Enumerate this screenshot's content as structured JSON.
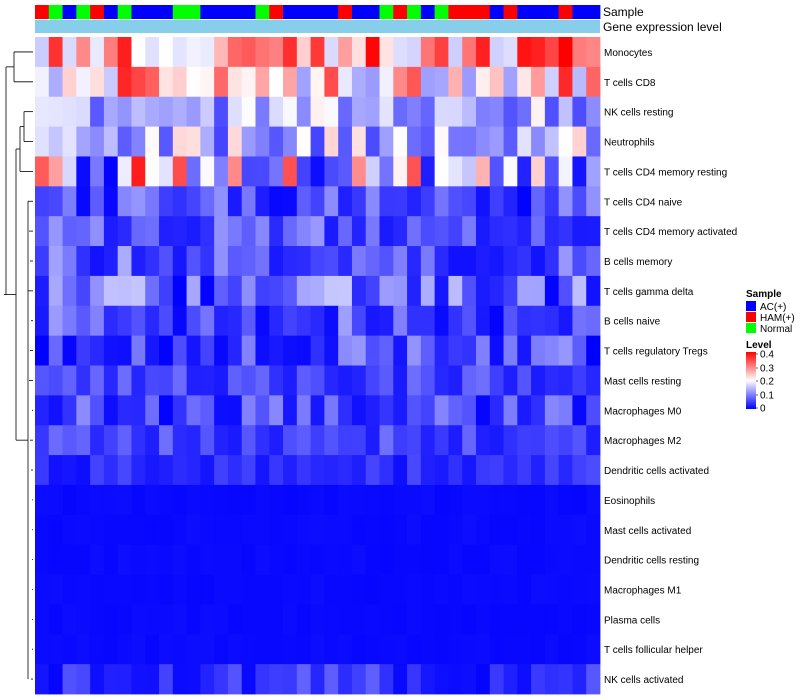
{
  "chart_data": {
    "type": "heatmap",
    "title": "",
    "annotations": [
      {
        "label": "Sample",
        "type": "categorical"
      },
      {
        "label": "Gene expression level",
        "type": "continuous",
        "color": "#87ceeb"
      }
    ],
    "columns": 41,
    "sample_groups": [
      "H",
      "N",
      "B",
      "N",
      "H",
      "B",
      "N",
      "B",
      "B",
      "B",
      "N",
      "N",
      "B",
      "B",
      "B",
      "B",
      "N",
      "H",
      "B",
      "B",
      "B",
      "B",
      "H",
      "B",
      "B",
      "N",
      "H",
      "N",
      "B",
      "N",
      "H",
      "H",
      "H",
      "B",
      "H",
      "B",
      "B",
      "B",
      "H",
      "B",
      "B"
    ],
    "rows": [
      "Monocytes",
      "T cells CD8",
      "NK cells resting",
      "Neutrophils",
      "T cells CD4 memory resting",
      "T cells CD4 naive",
      "T cells CD4 memory activated",
      "B cells memory",
      "T cells gamma delta",
      "B cells naive",
      "T cells regulatory  Tregs",
      "Mast cells resting",
      "Macrophages M0",
      "Macrophages M2",
      "Dendritic cells activated",
      "Eosinophils",
      "Mast cells activated",
      "Dendritic cells resting",
      "Macrophages M1",
      "Plasma cells",
      "T cells follicular helper",
      "NK cells activated"
    ],
    "row_ranges": [
      [
        0.16,
        0.42
      ],
      [
        0.12,
        0.42
      ],
      [
        0.06,
        0.22
      ],
      [
        0.05,
        0.24
      ],
      [
        0.0,
        0.38
      ],
      [
        0.0,
        0.12
      ],
      [
        0.02,
        0.12
      ],
      [
        0.01,
        0.14
      ],
      [
        0.0,
        0.17
      ],
      [
        0.0,
        0.13
      ],
      [
        0.0,
        0.12
      ],
      [
        0.02,
        0.09
      ],
      [
        0.0,
        0.11
      ],
      [
        0.02,
        0.09
      ],
      [
        0.01,
        0.06
      ],
      [
        0.005,
        0.01
      ],
      [
        0.005,
        0.01
      ],
      [
        0.005,
        0.01
      ],
      [
        0.005,
        0.01
      ],
      [
        0.005,
        0.01
      ],
      [
        0.005,
        0.01
      ],
      [
        0.0,
        0.08
      ]
    ],
    "legend_sample": {
      "title": "Sample",
      "entries": [
        {
          "key": "B",
          "label": "AC(+)",
          "color": "#0000ff"
        },
        {
          "key": "H",
          "label": "HAM(+)",
          "color": "#ff0000"
        },
        {
          "key": "N",
          "label": "Normal",
          "color": "#00ff00"
        }
      ]
    },
    "legend_level": {
      "title": "Level",
      "range": [
        0,
        0.4
      ],
      "ticks": [
        "0.4",
        "0.3",
        "0.2",
        "0.1",
        "0"
      ],
      "colors": [
        "#0000ff",
        "#ffffff",
        "#ff0000"
      ]
    }
  }
}
